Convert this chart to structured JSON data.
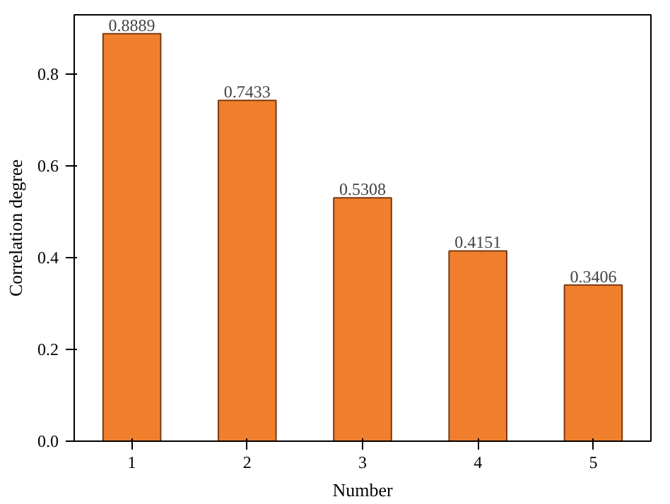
{
  "chart_data": {
    "type": "bar",
    "xlabel": "Number",
    "ylabel": "Correlation degree",
    "categories": [
      "1",
      "2",
      "3",
      "4",
      "5"
    ],
    "values": [
      0.8889,
      0.7433,
      0.5308,
      0.4151,
      0.3406
    ],
    "color": "#f07f2d",
    "ylim": [
      0,
      0.93
    ],
    "yticks": [
      {
        "value": 0,
        "label": "0.0"
      },
      {
        "value": 0.2,
        "label": "0.2"
      },
      {
        "value": 0.4,
        "label": "0.4"
      },
      {
        "value": 0.6,
        "label": "0.6"
      },
      {
        "value": 0.8,
        "label": "0.8"
      }
    ],
    "data_labels": true,
    "grid": false
  }
}
